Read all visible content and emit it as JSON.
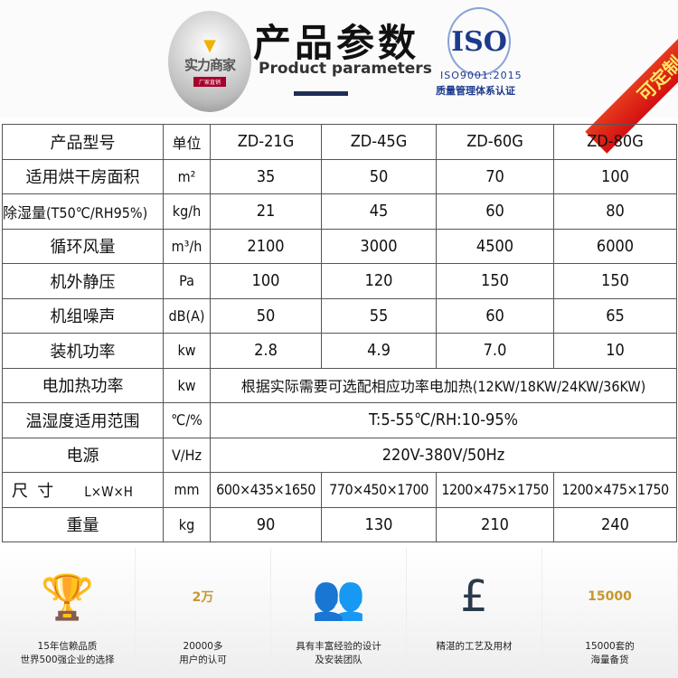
{
  "header": {
    "logo_text": "实力商家",
    "logo_badge": "厂家直销",
    "title": "产品参数",
    "subtitle": "Product parameters",
    "iso_logo": "ISO",
    "iso_cert": "ISO9001:2015",
    "iso_desc": "质量管理体系认证",
    "ribbon": "可定制"
  },
  "table": {
    "header": [
      "产品型号",
      "单位",
      "ZD-21G",
      "ZD-45G",
      "ZD-60G",
      "ZD-80G"
    ],
    "rows": [
      [
        "适用烘干房面积",
        "m²",
        "35",
        "50",
        "70",
        "100"
      ],
      [
        "除湿量(T50℃/RH95%)",
        "kg/h",
        "21",
        "45",
        "60",
        "80"
      ],
      [
        "循环风量",
        "m³/h",
        "2100",
        "3000",
        "4500",
        "6000"
      ],
      [
        "机外静压",
        "Pa",
        "100",
        "120",
        "150",
        "150"
      ],
      [
        "机组噪声",
        "dB(A)",
        "50",
        "55",
        "60",
        "65"
      ],
      [
        "装机功率",
        "kw",
        "2.8",
        "4.9",
        "7.0",
        "10"
      ]
    ],
    "merged_rows": [
      [
        "电加热功率",
        "kw",
        "根据实际需要可选配相应功率电加热(12KW/18KW/24KW/36KW)"
      ],
      [
        "温湿度适用范围",
        "℃/%",
        "T:5-55℃/RH:10-95%"
      ],
      [
        "电源",
        "V/Hz",
        "220V-380V/50Hz"
      ]
    ],
    "size_row": [
      "尺  寸",
      "L×W×H",
      "mm",
      "600×435×1650",
      "770×450×1700",
      "1200×475×1750",
      "1200×475×1750"
    ],
    "weight_row": [
      "重量",
      "kg",
      "90",
      "130",
      "210",
      "240"
    ]
  },
  "features": [
    {
      "icon": "trophy-icon",
      "line1": "15年信赖品质",
      "line2": "世界500强企业的选择"
    },
    {
      "icon": "laurel-badge-icon",
      "badge": "2万",
      "line1": "20000多",
      "line2": "用户的认可"
    },
    {
      "icon": "team-icon",
      "line1": "具有丰富经验的设计",
      "line2": "及安装团队"
    },
    {
      "icon": "quality-seal-icon",
      "line1": "精湛的工艺及用材",
      "line2": ""
    },
    {
      "icon": "magnifier-icon",
      "badge": "15000",
      "line1": "15000套的",
      "line2": "海量备货"
    }
  ]
}
